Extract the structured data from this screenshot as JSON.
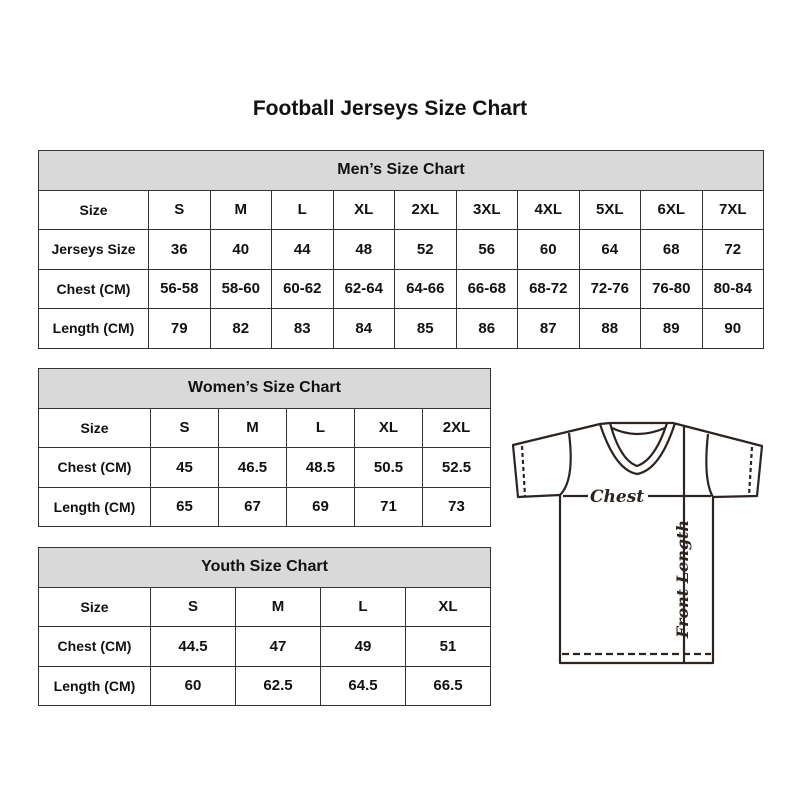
{
  "title": "Football Jerseys Size Chart",
  "men": {
    "caption": "Men’s Size Chart",
    "rows": [
      [
        "Size",
        "S",
        "M",
        "L",
        "XL",
        "2XL",
        "3XL",
        "4XL",
        "5XL",
        "6XL",
        "7XL"
      ],
      [
        "Jerseys Size",
        "36",
        "40",
        "44",
        "48",
        "52",
        "56",
        "60",
        "64",
        "68",
        "72"
      ],
      [
        "Chest (CM)",
        "56-58",
        "58-60",
        "60-62",
        "62-64",
        "64-66",
        "66-68",
        "68-72",
        "72-76",
        "76-80",
        "80-84"
      ],
      [
        "Length (CM)",
        "79",
        "82",
        "83",
        "84",
        "85",
        "86",
        "87",
        "88",
        "89",
        "90"
      ]
    ]
  },
  "women": {
    "caption": "Women’s Size Chart",
    "rows": [
      [
        "Size",
        "S",
        "M",
        "L",
        "XL",
        "2XL"
      ],
      [
        "Chest (CM)",
        "45",
        "46.5",
        "48.5",
        "50.5",
        "52.5"
      ],
      [
        "Length (CM)",
        "65",
        "67",
        "69",
        "71",
        "73"
      ]
    ]
  },
  "youth": {
    "caption": "Youth Size Chart",
    "rows": [
      [
        "Size",
        "S",
        "M",
        "L",
        "XL"
      ],
      [
        "Chest (CM)",
        "44.5",
        "47",
        "49",
        "51"
      ],
      [
        "Length (CM)",
        "60",
        "62.5",
        "64.5",
        "66.5"
      ]
    ]
  },
  "diagram": {
    "chest_label": "Chest",
    "length_label": "Front Length"
  },
  "colors": {
    "header_bg": "#d9d9d9",
    "line": "#2b2420"
  }
}
